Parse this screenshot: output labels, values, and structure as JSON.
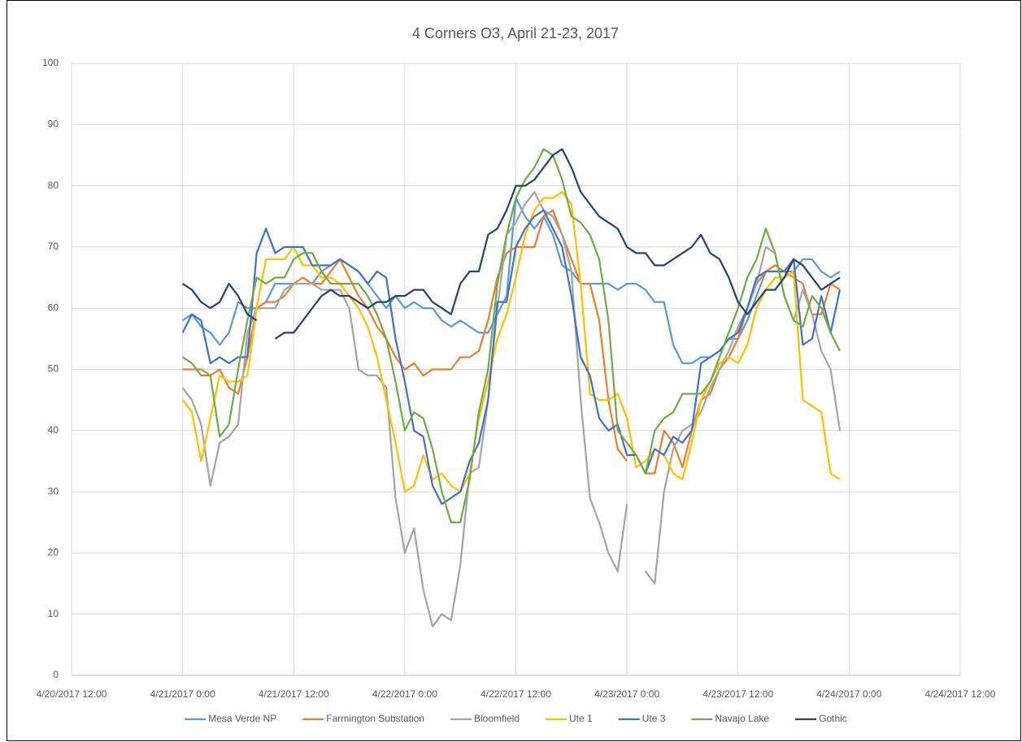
{
  "chart_data": {
    "type": "line",
    "title": "4 Corners O3, April 21-23, 2017",
    "x": [
      "2017-04-21T00:00",
      "2017-04-21T01:00",
      "2017-04-21T02:00",
      "2017-04-21T03:00",
      "2017-04-21T04:00",
      "2017-04-21T05:00",
      "2017-04-21T06:00",
      "2017-04-21T07:00",
      "2017-04-21T08:00",
      "2017-04-21T09:00",
      "2017-04-21T10:00",
      "2017-04-21T11:00",
      "2017-04-21T12:00",
      "2017-04-21T13:00",
      "2017-04-21T14:00",
      "2017-04-21T15:00",
      "2017-04-21T16:00",
      "2017-04-21T17:00",
      "2017-04-21T18:00",
      "2017-04-21T19:00",
      "2017-04-21T20:00",
      "2017-04-21T21:00",
      "2017-04-21T22:00",
      "2017-04-21T23:00",
      "2017-04-22T00:00",
      "2017-04-22T01:00",
      "2017-04-22T02:00",
      "2017-04-22T03:00",
      "2017-04-22T04:00",
      "2017-04-22T05:00",
      "2017-04-22T06:00",
      "2017-04-22T07:00",
      "2017-04-22T08:00",
      "2017-04-22T09:00",
      "2017-04-22T10:00",
      "2017-04-22T11:00",
      "2017-04-22T12:00",
      "2017-04-22T13:00",
      "2017-04-22T14:00",
      "2017-04-22T15:00",
      "2017-04-22T16:00",
      "2017-04-22T17:00",
      "2017-04-22T18:00",
      "2017-04-22T19:00",
      "2017-04-22T20:00",
      "2017-04-22T21:00",
      "2017-04-22T22:00",
      "2017-04-22T23:00",
      "2017-04-23T00:00",
      "2017-04-23T01:00",
      "2017-04-23T02:00",
      "2017-04-23T03:00",
      "2017-04-23T04:00",
      "2017-04-23T05:00",
      "2017-04-23T06:00",
      "2017-04-23T07:00",
      "2017-04-23T08:00",
      "2017-04-23T09:00",
      "2017-04-23T10:00",
      "2017-04-23T11:00",
      "2017-04-23T12:00",
      "2017-04-23T13:00",
      "2017-04-23T14:00",
      "2017-04-23T15:00",
      "2017-04-23T16:00",
      "2017-04-23T17:00",
      "2017-04-23T18:00",
      "2017-04-23T19:00",
      "2017-04-23T20:00",
      "2017-04-23T21:00",
      "2017-04-23T22:00",
      "2017-04-23T23:00"
    ],
    "series": [
      {
        "name": "Mesa Verde NP",
        "color": "#5b9bd5",
        "values": [
          58,
          59,
          57,
          56,
          54,
          56,
          61,
          60,
          60,
          61,
          64,
          64,
          64,
          64,
          64,
          66,
          67,
          68,
          67,
          66,
          64,
          62,
          60,
          62,
          60,
          61,
          60,
          60,
          58,
          57,
          58,
          57,
          56,
          56,
          59,
          62,
          78,
          75,
          73,
          75,
          72,
          67,
          66,
          64,
          64,
          64,
          64,
          63,
          64,
          64,
          63,
          61,
          61,
          54,
          51,
          51,
          52,
          52,
          53,
          55,
          55,
          58,
          62,
          66,
          66,
          66,
          66,
          68,
          68,
          66,
          65,
          66
        ]
      },
      {
        "name": "Farmington Substation",
        "color": "#ed7d31",
        "values": [
          50,
          50,
          50,
          49,
          50,
          47,
          46,
          52,
          60,
          61,
          61,
          62,
          64,
          65,
          64,
          64,
          66,
          68,
          65,
          62,
          60,
          57,
          55,
          52,
          50,
          51,
          49,
          50,
          50,
          50,
          52,
          52,
          53,
          58,
          65,
          69,
          70,
          70,
          70,
          75,
          76,
          72,
          68,
          64,
          64,
          58,
          45,
          37,
          35,
          null,
          33,
          33,
          40,
          38,
          34,
          40,
          45,
          46,
          50,
          52,
          55,
          60,
          64,
          66,
          67,
          66,
          65,
          64,
          59,
          59,
          64,
          63
        ]
      },
      {
        "name": "Bloomfield",
        "color": "#a5a5a5",
        "values": [
          47,
          45,
          41,
          31,
          38,
          39,
          41,
          56,
          60,
          60,
          60,
          63,
          64,
          64,
          64,
          63,
          63,
          63,
          60,
          50,
          49,
          49,
          47,
          29,
          20,
          24,
          14,
          8,
          10,
          9,
          18,
          33,
          34,
          45,
          60,
          72,
          74,
          77,
          79,
          76,
          75,
          72,
          66,
          45,
          29,
          25,
          20,
          17,
          28,
          null,
          17,
          15,
          30,
          37,
          40,
          41,
          43,
          47,
          50,
          53,
          57,
          60,
          64,
          70,
          69,
          62,
          58,
          63,
          59,
          53,
          50,
          40
        ]
      },
      {
        "name": "Ute 1",
        "color": "#ffc000",
        "values": [
          45,
          43,
          35,
          42,
          49,
          48,
          48,
          49,
          60,
          68,
          68,
          68,
          70,
          67,
          67,
          65,
          65,
          64,
          62,
          60,
          57,
          52,
          45,
          38,
          30,
          31,
          36,
          32,
          33,
          31,
          30,
          33,
          42,
          48,
          55,
          59,
          65,
          72,
          76,
          78,
          78,
          79,
          77,
          64,
          46,
          45,
          45,
          46,
          42,
          34,
          35,
          37,
          36,
          33,
          32,
          38,
          45,
          48,
          51,
          52,
          51,
          54,
          60,
          63,
          65,
          65,
          66,
          45,
          44,
          43,
          33,
          32
        ]
      },
      {
        "name": "Ute 3",
        "color": "#4472c4",
        "values": [
          56,
          59,
          58,
          51,
          52,
          51,
          52,
          52,
          69,
          73,
          69,
          70,
          70,
          70,
          67,
          67,
          67,
          68,
          67,
          66,
          64,
          66,
          65,
          55,
          48,
          40,
          39,
          31,
          28,
          29,
          30,
          35,
          38,
          45,
          61,
          61,
          70,
          73,
          75,
          76,
          73,
          70,
          62,
          52,
          49,
          42,
          40,
          41,
          36,
          36,
          33,
          37,
          36,
          39,
          38,
          40,
          51,
          52,
          53,
          55,
          56,
          60,
          65,
          66,
          66,
          66,
          68,
          54,
          55,
          62,
          56,
          63
        ]
      },
      {
        "name": "Navajo Lake",
        "color": "#70ad47",
        "values": [
          52,
          51,
          49,
          49,
          39,
          41,
          50,
          58,
          65,
          64,
          65,
          65,
          68,
          69,
          69,
          66,
          64,
          64,
          64,
          64,
          62,
          59,
          55,
          48,
          40,
          43,
          42,
          37,
          30,
          25,
          25,
          32,
          43,
          50,
          64,
          72,
          78,
          81,
          83,
          86,
          85,
          81,
          75,
          74,
          72,
          68,
          58,
          40,
          38,
          36,
          33,
          40,
          42,
          43,
          46,
          46,
          46,
          48,
          52,
          56,
          60,
          65,
          68,
          73,
          69,
          62,
          58,
          57,
          62,
          60,
          56,
          53
        ]
      },
      {
        "name": "Gothic",
        "color": "#264478",
        "values": [
          64,
          63,
          61,
          60,
          61,
          64,
          62,
          59,
          58,
          null,
          55,
          56,
          56,
          58,
          60,
          62,
          63,
          62,
          62,
          61,
          60,
          61,
          61,
          62,
          62,
          63,
          63,
          61,
          60,
          59,
          64,
          66,
          66,
          72,
          73,
          76,
          80,
          80,
          81,
          83,
          85,
          86,
          83,
          79,
          77,
          75,
          74,
          73,
          70,
          69,
          69,
          67,
          67,
          68,
          69,
          70,
          72,
          69,
          68,
          65,
          61,
          59,
          61,
          63,
          63,
          65,
          68,
          67,
          65,
          63,
          64,
          65
        ]
      }
    ],
    "xlim": [
      "2017-04-20T12:00",
      "2017-04-24T12:00"
    ],
    "xticks": [
      {
        "value": "2017-04-20T12:00",
        "label": "4/20/2017 12:00"
      },
      {
        "value": "2017-04-21T00:00",
        "label": "4/21/2017 0:00"
      },
      {
        "value": "2017-04-21T12:00",
        "label": "4/21/2017 12:00"
      },
      {
        "value": "2017-04-22T00:00",
        "label": "4/22/2017 0:00"
      },
      {
        "value": "2017-04-22T12:00",
        "label": "4/22/2017 12:00"
      },
      {
        "value": "2017-04-23T00:00",
        "label": "4/23/2017 0:00"
      },
      {
        "value": "2017-04-23T12:00",
        "label": "4/23/2017 12:00"
      },
      {
        "value": "2017-04-24T00:00",
        "label": "4/24/2017 0:00"
      },
      {
        "value": "2017-04-24T12:00",
        "label": "4/24/2017 12:00"
      }
    ],
    "ylim": [
      0,
      100
    ],
    "yticks": [
      0,
      10,
      20,
      30,
      40,
      50,
      60,
      70,
      80,
      90,
      100
    ],
    "grid": true,
    "legend": "bottom"
  }
}
